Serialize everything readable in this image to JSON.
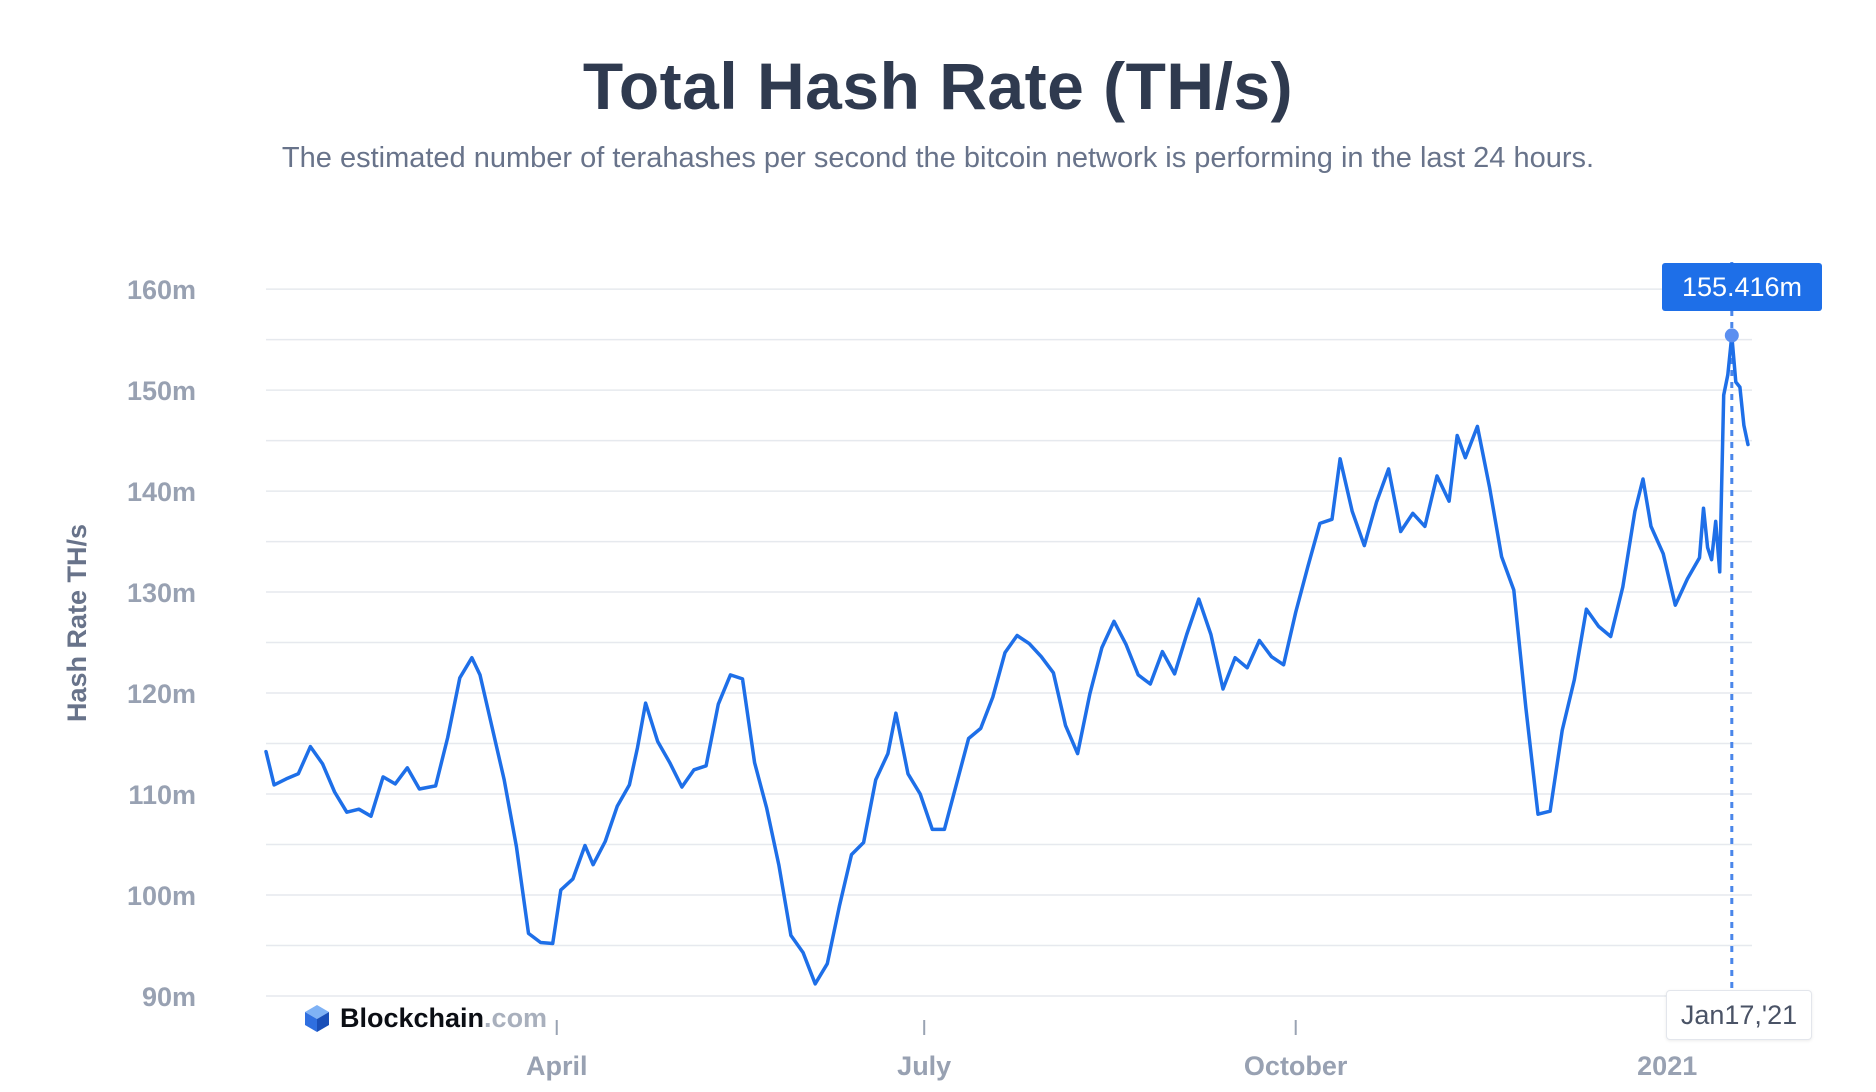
{
  "header": {
    "title": "Total Hash Rate (TH/s)",
    "subtitle": "The estimated number of terahashes per second the bitcoin network is performing in the last 24 hours."
  },
  "tooltip": {
    "value": "155.416m",
    "date": "Jan17,'21"
  },
  "brand": {
    "name": "Blockchain",
    "tld": ".com",
    "logo_icon": "blockchain-cube-icon"
  },
  "colors": {
    "line": "#1e6fe8",
    "grid": "#e6e9ee",
    "tick": "#98a1b2"
  },
  "chart_data": {
    "type": "line",
    "ylabel": "Hash Rate TH/s",
    "ylim": [
      90,
      161
    ],
    "yticks": [
      {
        "value": 90,
        "label": "90m"
      },
      {
        "value": 100,
        "label": "100m"
      },
      {
        "value": 110,
        "label": "110m"
      },
      {
        "value": 120,
        "label": "120m"
      },
      {
        "value": 130,
        "label": "130m"
      },
      {
        "value": 140,
        "label": "140m"
      },
      {
        "value": 150,
        "label": "150m"
      },
      {
        "value": 160,
        "label": "160m"
      }
    ],
    "xlim": [
      "2020-01-20",
      "2021-01-22"
    ],
    "xticks": [
      {
        "date": "2020-04-01",
        "label": "April"
      },
      {
        "date": "2020-07-01",
        "label": "July"
      },
      {
        "date": "2020-10-01",
        "label": "October"
      },
      {
        "date": "2021-01-01",
        "label": "2021"
      }
    ],
    "highlight": {
      "date": "2021-01-17",
      "value": 155.416
    },
    "series": [
      {
        "values": [
          [
            "2020-01-20",
            114.2
          ],
          [
            "2020-01-22",
            110.9
          ],
          [
            "2020-01-25",
            111.5
          ],
          [
            "2020-01-28",
            112.0
          ],
          [
            "2020-01-31",
            114.7
          ],
          [
            "2020-02-03",
            113.0
          ],
          [
            "2020-02-06",
            110.2
          ],
          [
            "2020-02-09",
            108.2
          ],
          [
            "2020-02-12",
            108.5
          ],
          [
            "2020-02-15",
            107.8
          ],
          [
            "2020-02-18",
            111.7
          ],
          [
            "2020-02-21",
            111.0
          ],
          [
            "2020-02-24",
            112.6
          ],
          [
            "2020-02-27",
            110.5
          ],
          [
            "2020-03-02",
            110.8
          ],
          [
            "2020-03-05",
            115.6
          ],
          [
            "2020-03-08",
            121.5
          ],
          [
            "2020-03-11",
            123.5
          ],
          [
            "2020-03-13",
            121.8
          ],
          [
            "2020-03-16",
            116.6
          ],
          [
            "2020-03-19",
            111.4
          ],
          [
            "2020-03-22",
            104.8
          ],
          [
            "2020-03-25",
            96.2
          ],
          [
            "2020-03-28",
            95.3
          ],
          [
            "2020-03-31",
            95.2
          ],
          [
            "2020-04-02",
            100.5
          ],
          [
            "2020-04-05",
            101.6
          ],
          [
            "2020-04-08",
            104.9
          ],
          [
            "2020-04-10",
            103.0
          ],
          [
            "2020-04-13",
            105.3
          ],
          [
            "2020-04-16",
            108.8
          ],
          [
            "2020-04-19",
            110.9
          ],
          [
            "2020-04-21",
            114.6
          ],
          [
            "2020-04-23",
            119.0
          ],
          [
            "2020-04-26",
            115.2
          ],
          [
            "2020-04-29",
            113.1
          ],
          [
            "2020-05-02",
            110.7
          ],
          [
            "2020-05-05",
            112.4
          ],
          [
            "2020-05-08",
            112.8
          ],
          [
            "2020-05-11",
            118.9
          ],
          [
            "2020-05-14",
            121.8
          ],
          [
            "2020-05-17",
            121.4
          ],
          [
            "2020-05-20",
            113.1
          ],
          [
            "2020-05-23",
            108.6
          ],
          [
            "2020-05-26",
            103.0
          ],
          [
            "2020-05-29",
            96.0
          ],
          [
            "2020-06-01",
            94.3
          ],
          [
            "2020-06-04",
            91.2
          ],
          [
            "2020-06-07",
            93.2
          ],
          [
            "2020-06-10",
            98.9
          ],
          [
            "2020-06-13",
            104.0
          ],
          [
            "2020-06-16",
            105.2
          ],
          [
            "2020-06-19",
            111.4
          ],
          [
            "2020-06-22",
            114.0
          ],
          [
            "2020-06-24",
            118.0
          ],
          [
            "2020-06-27",
            112.0
          ],
          [
            "2020-06-30",
            110.0
          ],
          [
            "2020-07-03",
            106.5
          ],
          [
            "2020-07-06",
            106.5
          ],
          [
            "2020-07-09",
            111.0
          ],
          [
            "2020-07-12",
            115.5
          ],
          [
            "2020-07-15",
            116.5
          ],
          [
            "2020-07-18",
            119.6
          ],
          [
            "2020-07-21",
            124.0
          ],
          [
            "2020-07-24",
            125.7
          ],
          [
            "2020-07-27",
            124.9
          ],
          [
            "2020-07-30",
            123.6
          ],
          [
            "2020-08-02",
            122.0
          ],
          [
            "2020-08-05",
            116.8
          ],
          [
            "2020-08-08",
            114.0
          ],
          [
            "2020-08-11",
            119.9
          ],
          [
            "2020-08-14",
            124.5
          ],
          [
            "2020-08-17",
            127.1
          ],
          [
            "2020-08-20",
            124.8
          ],
          [
            "2020-08-23",
            121.8
          ],
          [
            "2020-08-26",
            120.9
          ],
          [
            "2020-08-29",
            124.1
          ],
          [
            "2020-09-01",
            121.9
          ],
          [
            "2020-09-04",
            125.8
          ],
          [
            "2020-09-07",
            129.3
          ],
          [
            "2020-09-10",
            125.8
          ],
          [
            "2020-09-13",
            120.4
          ],
          [
            "2020-09-16",
            123.5
          ],
          [
            "2020-09-19",
            122.5
          ],
          [
            "2020-09-22",
            125.2
          ],
          [
            "2020-09-25",
            123.6
          ],
          [
            "2020-09-28",
            122.8
          ],
          [
            "2020-10-01",
            128.0
          ],
          [
            "2020-10-04",
            132.5
          ],
          [
            "2020-10-07",
            136.8
          ],
          [
            "2020-10-10",
            137.2
          ],
          [
            "2020-10-12",
            143.2
          ],
          [
            "2020-10-15",
            138.0
          ],
          [
            "2020-10-18",
            134.6
          ],
          [
            "2020-10-21",
            138.9
          ],
          [
            "2020-10-24",
            142.2
          ],
          [
            "2020-10-27",
            136.0
          ],
          [
            "2020-10-30",
            137.8
          ],
          [
            "2020-11-02",
            136.5
          ],
          [
            "2020-11-05",
            141.5
          ],
          [
            "2020-11-08",
            139.0
          ],
          [
            "2020-11-10",
            145.5
          ],
          [
            "2020-11-12",
            143.3
          ],
          [
            "2020-11-15",
            146.4
          ],
          [
            "2020-11-18",
            140.4
          ],
          [
            "2020-11-21",
            133.5
          ],
          [
            "2020-11-24",
            130.2
          ],
          [
            "2020-11-27",
            118.5
          ],
          [
            "2020-11-30",
            108.0
          ],
          [
            "2020-12-03",
            108.3
          ],
          [
            "2020-12-06",
            116.3
          ],
          [
            "2020-12-09",
            121.3
          ],
          [
            "2020-12-12",
            128.3
          ],
          [
            "2020-12-15",
            126.6
          ],
          [
            "2020-12-18",
            125.6
          ],
          [
            "2020-12-21",
            130.5
          ],
          [
            "2020-12-24",
            138.0
          ],
          [
            "2020-12-26",
            141.2
          ],
          [
            "2020-12-28",
            136.5
          ],
          [
            "2020-12-31",
            133.8
          ],
          [
            "2021-01-03",
            128.7
          ],
          [
            "2021-01-06",
            131.3
          ],
          [
            "2021-01-09",
            133.4
          ],
          [
            "2021-01-10",
            138.3
          ],
          [
            "2021-01-11",
            134.4
          ],
          [
            "2021-01-12",
            133.2
          ],
          [
            "2021-01-13",
            137.0
          ],
          [
            "2021-01-14",
            132.0
          ],
          [
            "2021-01-15",
            149.5
          ],
          [
            "2021-01-16",
            151.5
          ],
          [
            "2021-01-17",
            155.4
          ],
          [
            "2021-01-18",
            150.8
          ],
          [
            "2021-01-19",
            150.3
          ],
          [
            "2021-01-20",
            146.5
          ],
          [
            "2021-01-21",
            144.6
          ]
        ]
      }
    ]
  }
}
